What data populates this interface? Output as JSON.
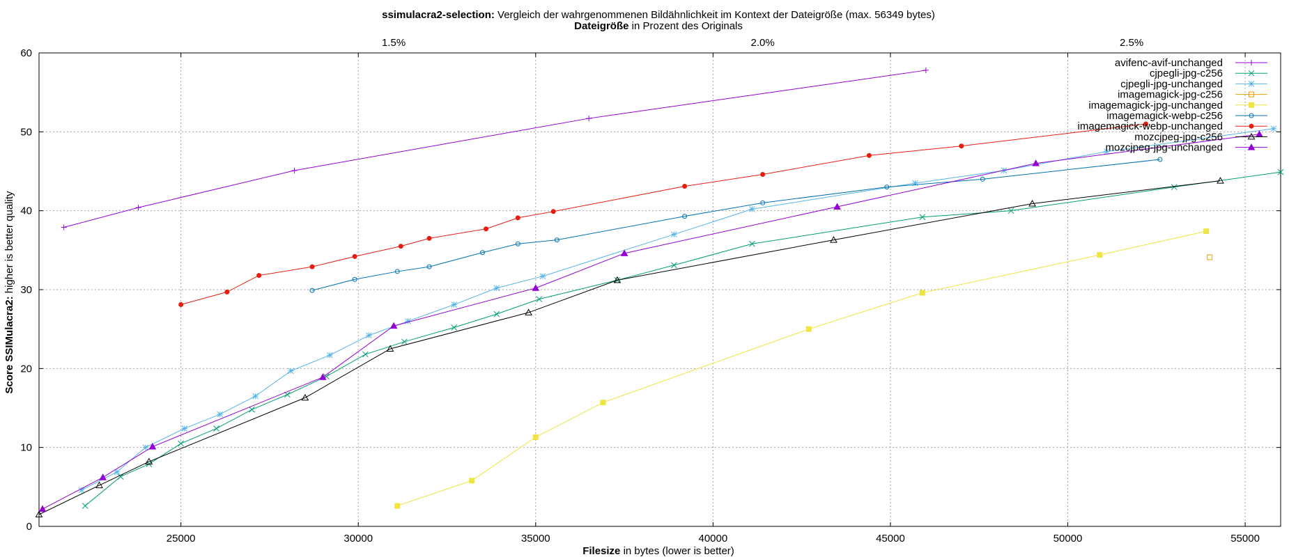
{
  "chart_data": {
    "type": "line",
    "title": {
      "bold": "ssimulacra2-selection:",
      "rest": " Vergleich der wahrgenommenen Bildähnlichkeit im Kontext der Dateigröße (max. 56349 bytes)"
    },
    "subtitle": {
      "bold": "Dateigröße",
      "rest": " in Prozent des Originals"
    },
    "xlabel": {
      "bold": "Filesize",
      "rest": " in bytes (lower is better)"
    },
    "ylabel": {
      "bold": "Score SSIMulacra2:",
      "rest": " higher is better quality"
    },
    "xlim": [
      21000,
      56000
    ],
    "ylim": [
      0,
      60
    ],
    "x_ticks": [
      25000,
      30000,
      35000,
      40000,
      45000,
      50000,
      55000
    ],
    "x_tick_labels": [
      "25000",
      "30000",
      "35000",
      "40000",
      "45000",
      "50000",
      "55000"
    ],
    "y_ticks": [
      0,
      10,
      20,
      30,
      40,
      50,
      60
    ],
    "y_tick_labels": [
      "0",
      "10",
      "20",
      "30",
      "40",
      "50",
      "60"
    ],
    "x2_ticks": [
      31000,
      41400,
      51800
    ],
    "x2_tick_labels": [
      "1.5%",
      "2.0%",
      "2.5%"
    ],
    "grid": true,
    "legend_position": "top-right",
    "series": [
      {
        "name": "avifenc-avif-unchanged",
        "color": "#9400d3",
        "marker": "plus",
        "points": [
          [
            21700,
            37.9
          ],
          [
            23800,
            40.4
          ],
          [
            28200,
            45.1
          ],
          [
            36500,
            51.7
          ],
          [
            46000,
            57.8
          ]
        ]
      },
      {
        "name": "cjpegli-jpg-c256",
        "color": "#009e73",
        "marker": "x",
        "points": [
          [
            22300,
            2.6
          ],
          [
            23300,
            6.3
          ],
          [
            24100,
            7.9
          ],
          [
            25000,
            10.5
          ],
          [
            26000,
            12.4
          ],
          [
            27000,
            14.8
          ],
          [
            28000,
            16.7
          ],
          [
            29100,
            19.0
          ],
          [
            30200,
            21.8
          ],
          [
            31300,
            23.4
          ],
          [
            32700,
            25.2
          ],
          [
            33900,
            26.9
          ],
          [
            35100,
            28.8
          ],
          [
            37300,
            31.2
          ],
          [
            38900,
            33.1
          ],
          [
            41100,
            35.8
          ],
          [
            45900,
            39.2
          ],
          [
            48400,
            40.0
          ],
          [
            53000,
            43.0
          ],
          [
            56000,
            44.9
          ]
        ]
      },
      {
        "name": "cjpegli-jpg-unchanged",
        "color": "#56b4e9",
        "marker": "star",
        "points": [
          [
            22200,
            4.6
          ],
          [
            23200,
            6.9
          ],
          [
            24000,
            10.0
          ],
          [
            25100,
            12.4
          ],
          [
            26100,
            14.2
          ],
          [
            27100,
            16.5
          ],
          [
            28100,
            19.7
          ],
          [
            29200,
            21.7
          ],
          [
            30300,
            24.2
          ],
          [
            31400,
            26.0
          ],
          [
            32700,
            28.1
          ],
          [
            33900,
            30.2
          ],
          [
            35200,
            31.7
          ],
          [
            38900,
            37.0
          ],
          [
            41100,
            40.2
          ],
          [
            45700,
            43.5
          ],
          [
            48200,
            45.1
          ],
          [
            51100,
            47.5
          ],
          [
            55800,
            50.4
          ]
        ]
      },
      {
        "name": "imagemagick-jpg-c256",
        "color": "#e69f00",
        "marker": "square-open",
        "points": [
          [
            54000,
            34.1
          ]
        ]
      },
      {
        "name": "imagemagick-jpg-unchanged",
        "color": "#f0e442",
        "marker": "square-filled",
        "points": [
          [
            31100,
            2.6
          ],
          [
            33200,
            5.8
          ],
          [
            35000,
            11.3
          ],
          [
            36900,
            15.7
          ],
          [
            42700,
            25.0
          ],
          [
            45900,
            29.6
          ],
          [
            50900,
            34.4
          ],
          [
            53900,
            37.4
          ]
        ]
      },
      {
        "name": "imagemagick-webp-c256",
        "color": "#0072b2",
        "marker": "circle-open",
        "points": [
          [
            28700,
            29.9
          ],
          [
            29900,
            31.3
          ],
          [
            31100,
            32.3
          ],
          [
            32000,
            32.9
          ],
          [
            33500,
            34.7
          ],
          [
            34500,
            35.8
          ],
          [
            35600,
            36.3
          ],
          [
            39200,
            39.3
          ],
          [
            41400,
            41.0
          ],
          [
            44900,
            43.0
          ],
          [
            47600,
            44.0
          ],
          [
            52600,
            46.5
          ]
        ]
      },
      {
        "name": "imagemagick-webp-unchanged",
        "color": "#e51e10",
        "marker": "circle-filled",
        "points": [
          [
            25000,
            28.1
          ],
          [
            26300,
            29.7
          ],
          [
            27200,
            31.8
          ],
          [
            28700,
            32.9
          ],
          [
            29900,
            34.2
          ],
          [
            31200,
            35.5
          ],
          [
            32000,
            36.5
          ],
          [
            33600,
            37.7
          ],
          [
            34500,
            39.1
          ],
          [
            35500,
            39.9
          ],
          [
            39200,
            43.1
          ],
          [
            41400,
            44.6
          ],
          [
            44400,
            47.0
          ],
          [
            47000,
            48.2
          ],
          [
            52200,
            51.0
          ]
        ]
      },
      {
        "name": "mozcjpeg-jpg-c256",
        "color": "#000000",
        "marker": "triangle-open",
        "points": [
          [
            21000,
            1.5
          ],
          [
            22700,
            5.2
          ],
          [
            24100,
            8.2
          ],
          [
            28500,
            16.3
          ],
          [
            30900,
            22.5
          ],
          [
            34800,
            27.1
          ],
          [
            37300,
            31.2
          ],
          [
            43400,
            36.3
          ],
          [
            49000,
            40.9
          ],
          [
            54300,
            43.8
          ]
        ]
      },
      {
        "name": "mozcjpeg-jpg-unchanged",
        "color": "#9400d3",
        "marker": "triangle-filled",
        "points": [
          [
            21100,
            2.2
          ],
          [
            22800,
            6.2
          ],
          [
            24200,
            10.1
          ],
          [
            29000,
            18.9
          ],
          [
            31000,
            25.4
          ],
          [
            35000,
            30.2
          ],
          [
            37500,
            34.6
          ],
          [
            43500,
            40.5
          ],
          [
            49100,
            46.0
          ],
          [
            55400,
            49.7
          ]
        ]
      }
    ]
  }
}
